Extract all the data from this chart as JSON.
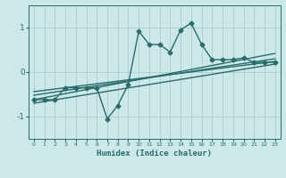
{
  "title": "",
  "xlabel": "Humidex (Indice chaleur)",
  "ylabel": "",
  "bg_color": "#cce8e8",
  "line_color": "#2a6b6b",
  "grid_color": "#aacfcf",
  "xlim": [
    -0.5,
    23.5
  ],
  "ylim": [
    -1.5,
    1.5
  ],
  "xticks": [
    0,
    1,
    2,
    3,
    4,
    5,
    6,
    7,
    8,
    9,
    10,
    11,
    12,
    13,
    14,
    15,
    16,
    17,
    18,
    19,
    20,
    21,
    22,
    23
  ],
  "yticks": [
    -1,
    0,
    1
  ],
  "zigzag_x": [
    0,
    1,
    2,
    3,
    4,
    5,
    6,
    7,
    8,
    9,
    10,
    11,
    12,
    13,
    14,
    15,
    16,
    17,
    18,
    19,
    20,
    21,
    22,
    23
  ],
  "zigzag_y": [
    -0.62,
    -0.62,
    -0.62,
    -0.35,
    -0.35,
    -0.35,
    -0.35,
    -1.05,
    -0.75,
    -0.28,
    0.92,
    0.62,
    0.62,
    0.45,
    0.95,
    1.1,
    0.62,
    0.28,
    0.28,
    0.28,
    0.32,
    0.22,
    0.22,
    0.22
  ],
  "line1_x": [
    0,
    23
  ],
  "line1_y": [
    -0.62,
    0.42
  ],
  "line2_x": [
    0,
    23
  ],
  "line2_y": [
    -0.52,
    0.3
  ],
  "line3_x": [
    0,
    23
  ],
  "line3_y": [
    -0.44,
    0.24
  ],
  "line4_x": [
    0,
    23
  ],
  "line4_y": [
    -0.7,
    0.18
  ],
  "marker_size": 2.5,
  "line_width": 1.0
}
